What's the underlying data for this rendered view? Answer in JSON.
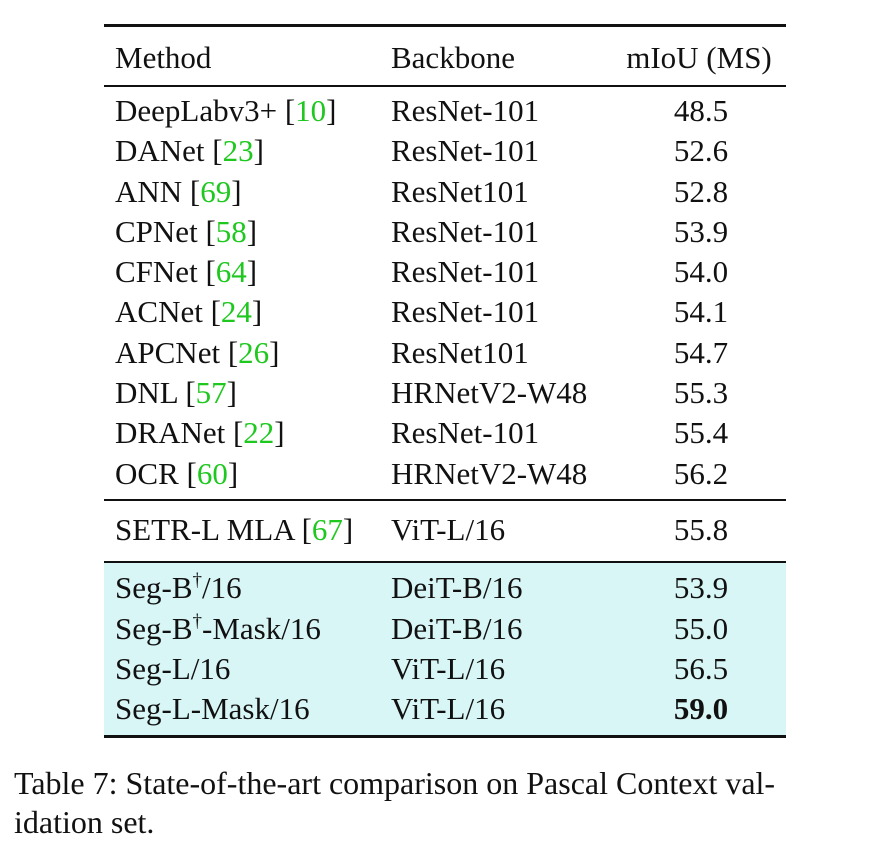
{
  "table": {
    "headers": {
      "method": "Method",
      "backbone": "Backbone",
      "miou": "mIoU (MS)"
    },
    "baselines": [
      {
        "method": "DeepLabv3+ ",
        "ref": "10",
        "backbone": "ResNet-101",
        "miou": "48.5"
      },
      {
        "method": "DANet ",
        "ref": "23",
        "backbone": "ResNet-101",
        "miou": "52.6"
      },
      {
        "method": "ANN ",
        "ref": "69",
        "backbone": "ResNet101",
        "miou": "52.8"
      },
      {
        "method": "CPNet ",
        "ref": "58",
        "backbone": "ResNet-101",
        "miou": "53.9"
      },
      {
        "method": "CFNet ",
        "ref": "64",
        "backbone": "ResNet-101",
        "miou": "54.0"
      },
      {
        "method": "ACNet ",
        "ref": "24",
        "backbone": "ResNet-101",
        "miou": "54.1"
      },
      {
        "method": "APCNet ",
        "ref": "26",
        "backbone": "ResNet101",
        "miou": "54.7"
      },
      {
        "method": "DNL ",
        "ref": "57",
        "backbone": "HRNetV2-W48",
        "miou": "55.3"
      },
      {
        "method": "DRANet ",
        "ref": "22",
        "backbone": "ResNet-101",
        "miou": "55.4"
      },
      {
        "method": "OCR ",
        "ref": "60",
        "backbone": "HRNetV2-W48",
        "miou": "56.2"
      }
    ],
    "setr": {
      "method": "SETR-L MLA ",
      "ref": "67",
      "backbone": "ViT-L/16",
      "miou": "55.8"
    },
    "ours": [
      {
        "prefix": "Seg-B",
        "sup": "†",
        "suffix": "/16",
        "backbone": "DeiT-B/16",
        "miou": "53.9",
        "best": false
      },
      {
        "prefix": "Seg-B",
        "sup": "†",
        "suffix": "-Mask/16",
        "backbone": "DeiT-B/16",
        "miou": "55.0",
        "best": false
      },
      {
        "prefix": "Seg-L/16",
        "sup": "",
        "suffix": "",
        "backbone": "ViT-L/16",
        "miou": "56.5",
        "best": false
      },
      {
        "prefix": "Seg-L-Mask/16",
        "sup": "",
        "suffix": "",
        "backbone": "ViT-L/16",
        "miou": "59.0",
        "best": true
      }
    ],
    "colors": {
      "citation": "#1ec81e",
      "highlight": "#d9f6f6",
      "text": "#111111"
    }
  },
  "caption": {
    "text": "Table 7: State-of-the-art comparison on Pascal Context val-idation set.",
    "line1": "Table 7: State-of-the-art comparison on Pascal Context val-",
    "line2": "idation set."
  }
}
